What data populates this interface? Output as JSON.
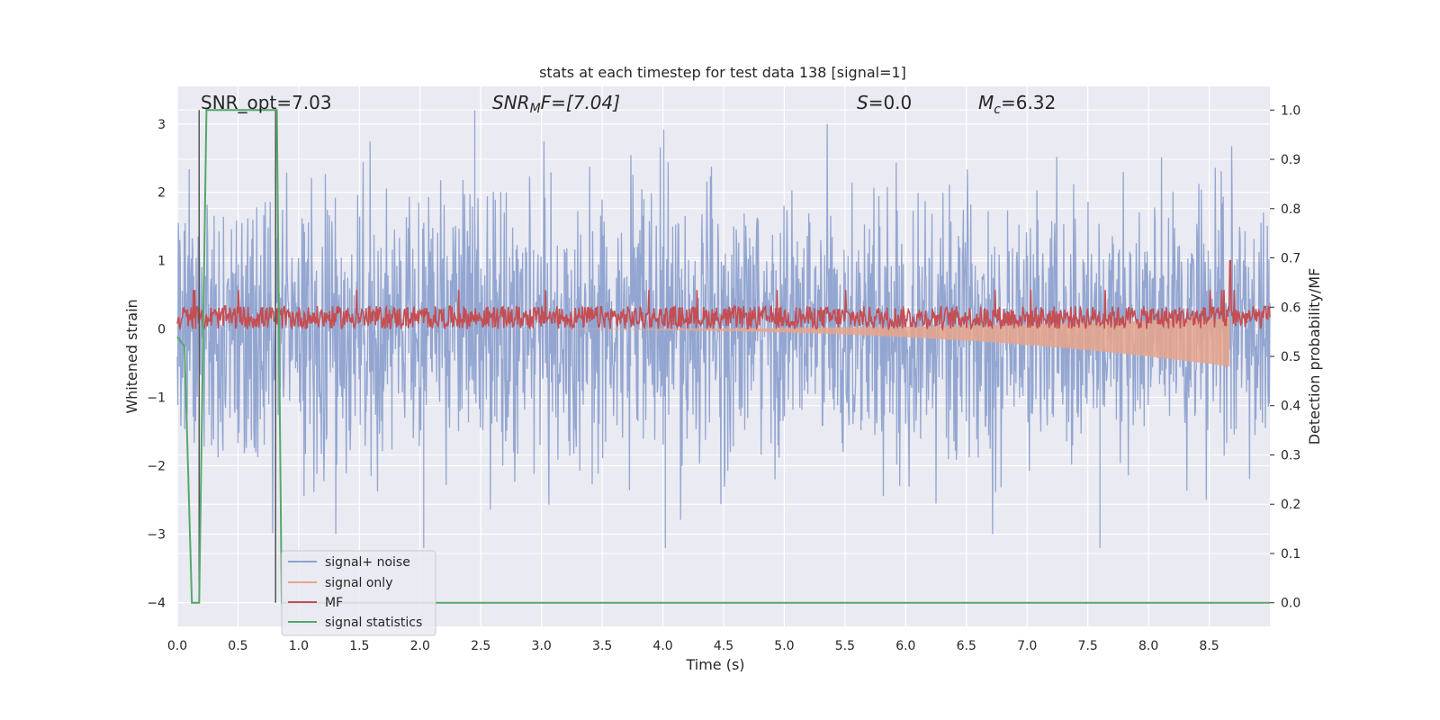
{
  "chart_data": {
    "type": "line",
    "title": "stats at each timestep for test data 138 [signal=1]",
    "xlabel": "Time (s)",
    "ylabel": "Whitened strain",
    "ylabel_right": "Detection probability/MF",
    "xlim": [
      0.0,
      9.0
    ],
    "ylim": [
      -4.35,
      3.55
    ],
    "ylim_right": [
      -0.048,
      1.048
    ],
    "x_ticks": [
      "0.0",
      "0.5",
      "1.0",
      "1.5",
      "2.0",
      "2.5",
      "3.0",
      "3.5",
      "4.0",
      "4.5",
      "5.0",
      "5.5",
      "6.0",
      "6.5",
      "7.0",
      "7.5",
      "8.0",
      "8.5"
    ],
    "y_ticks": [
      "3",
      "2",
      "1",
      "0",
      "−1",
      "−2",
      "−3",
      "−4"
    ],
    "y_ticks_right": [
      "1.0",
      "0.9",
      "0.8",
      "0.7",
      "0.6",
      "0.5",
      "0.4",
      "0.3",
      "0.2",
      "0.1",
      "0.0"
    ],
    "grid": true,
    "legend_position": "bottom-left",
    "series": [
      {
        "name": "signal+ noise",
        "color": "#8ea2cf",
        "envelope_std": 0.95,
        "peak_values": [
          {
            "x": 2.03,
            "y": -3.2
          },
          {
            "x": 2.45,
            "y": 3.2
          },
          {
            "x": 4.02,
            "y": -3.2
          },
          {
            "x": 7.6,
            "y": -3.2
          }
        ]
      },
      {
        "name": "signal only",
        "color": "#e8a58c",
        "end_time": 8.67,
        "end_amplitude_y": -0.55
      },
      {
        "name": "MF",
        "color": "#c44e52",
        "baseline_y": 0.15,
        "band": [
          0.0,
          0.45
        ],
        "peak": {
          "x": 8.67,
          "y": 1.0
        }
      },
      {
        "name": "signal statistics",
        "color": "#55a868",
        "axis": "right",
        "x": [
          0.0,
          0.06,
          0.12,
          0.18,
          0.24,
          0.25,
          0.82,
          0.86,
          0.9,
          9.0
        ],
        "y": [
          0.54,
          0.52,
          0.0,
          0.0,
          1.0,
          1.0,
          1.0,
          0.0,
          0.0,
          0.0
        ]
      }
    ],
    "vlines": [
      0.18,
      0.81
    ],
    "annotations": [
      "SNR_opt=7.03",
      "SNR",
      "M",
      "F=[7.04]",
      "S",
      "=0.0",
      "M",
      "c",
      "=6.32"
    ]
  }
}
